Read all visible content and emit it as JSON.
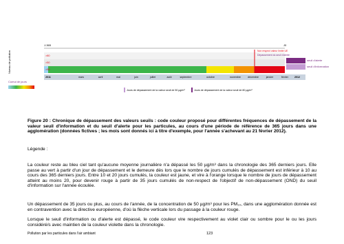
{
  "figure": {
    "y_axis_label": "Niveau de pollution",
    "start_label": "J-365",
    "end_label": "J0",
    "alert_note": "Dépassement du seuil d'alerte",
    "limit_note": "Non respect valeur limite UE",
    "row_labels": [
      ">80",
      ">50",
      ">50"
    ],
    "right_labels": [
      "seuil d'alerte",
      "seuil d'information"
    ],
    "months": [
      "2011",
      "mars",
      "avril",
      "mai",
      "juin",
      "juillet",
      "août",
      "septembre",
      "octobre",
      "novembre",
      "décembre",
      "janvier",
      "février",
      "2012"
    ],
    "cumul_label": "Cumul de jours",
    "legend": [
      "Jours de dépassement de la valeur seuil de 50 µg/m³",
      "Jours de dépassement de la valeur seuil de 80 µg/m³"
    ]
  },
  "caption": "Figure 20 : Chronique de dépassement des valeurs seuils : code couleur proposé pour différentes fréquences de dépassement de la valeur seuil d'information et du seuil d'alerte pour les particules, au cours d'une période de référence de 365 jours dans une agglomération (données fictives ; les mois sont donnés ici à titre d'exemple, pour l'année s'achevant au 21 février 2012).",
  "legend_heading": "Légende :",
  "paragraphs": [
    "La couleur reste au bleu ciel tant qu'aucune moyenne journalière n'a dépassé les 50 µg/m³ dans la chronologie des 365 derniers jours. Elle passe au vert à partir d'un jour de dépassement et le demeure dès lors que le nombre de jours cumulés de dépassement est inférieur à 10 au cours des 365 derniers jours. Entre 10 et 20 jours cumulés, la couleur est jaune, et vire à l'orange lorsque le nombre de jours de dépassement atteint au moins 20, pour devenir rouge à partir de 35 jours cumulés de non-respect de l'objectif de non-dépassement (OND) du seuil d'information sur l'année écoulée.",
    "Un dépassement de 35 jours ou plus, au cours de l'année, de la concentration de 50 µg/m³ pour les PM₁₀, dans une agglomération donnée est en contravention avec la directive européenne, d'où la flèche verticale lors du passage à la couleur rouge.",
    "Lorsque le seuil d'information ou d'alerte est dépassé, le code couleur vire respectivement au violet clair ou sombre pour le ou les jours considéré/s avec maintien de la couleur violette dans la chronologie."
  ],
  "footer": {
    "left": "Pollution par les particules dans l'air ambiant",
    "page": "123"
  }
}
